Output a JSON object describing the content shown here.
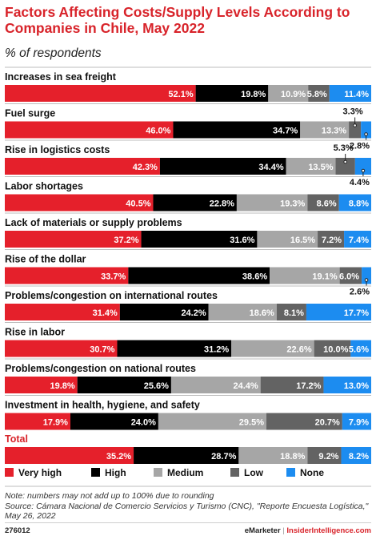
{
  "header": {
    "title": "Factors Affecting Costs/Supply Levels According to Companies in Chile, May 2022",
    "subtitle": "% of respondents"
  },
  "chart_data": {
    "type": "bar",
    "orientation": "horizontal",
    "stacked": true,
    "categories": [
      "Increases in sea freight",
      "Fuel surge",
      "Rise in logistics costs",
      "Labor shortages",
      "Lack of materials or supply problems",
      "Rise of the dollar",
      "Problems/congestion on international routes",
      "Rise in labor",
      "Problems/congestion on national routes",
      "Investment in health, hygiene, and safety",
      "Total"
    ],
    "series": [
      {
        "name": "Very high",
        "color": "#e5202b",
        "values": [
          52.1,
          46.0,
          42.3,
          40.5,
          37.2,
          33.7,
          31.4,
          30.7,
          19.8,
          17.9,
          35.2
        ]
      },
      {
        "name": "High",
        "color": "#000000",
        "values": [
          19.8,
          34.7,
          34.4,
          22.8,
          31.6,
          38.6,
          24.2,
          31.2,
          25.6,
          24.0,
          28.7
        ]
      },
      {
        "name": "Medium",
        "color": "#a6a6a6",
        "values": [
          10.9,
          13.3,
          13.5,
          19.3,
          16.5,
          19.1,
          18.6,
          22.6,
          24.4,
          29.5,
          18.8
        ]
      },
      {
        "name": "Low",
        "color": "#636363",
        "values": [
          5.8,
          3.3,
          5.3,
          8.6,
          7.2,
          6.0,
          8.1,
          10.0,
          17.2,
          20.7,
          9.2
        ]
      },
      {
        "name": "None",
        "color": "#1c8cf0",
        "values": [
          11.4,
          2.8,
          4.4,
          8.8,
          7.4,
          2.6,
          17.7,
          5.6,
          13.0,
          7.9,
          8.2
        ]
      }
    ],
    "labels": [
      [
        "52.1%",
        "19.8%",
        "10.9%",
        "5.8%",
        "11.4%"
      ],
      [
        "46.0%",
        "34.7%",
        "13.3%",
        "3.3%",
        "2.8%"
      ],
      [
        "42.3%",
        "34.4%",
        "13.5%",
        "5.3%",
        "4.4%"
      ],
      [
        "40.5%",
        "22.8%",
        "19.3%",
        "8.6%",
        "8.8%"
      ],
      [
        "37.2%",
        "31.6%",
        "16.5%",
        "7.2%",
        "7.4%"
      ],
      [
        "33.7%",
        "38.6%",
        "19.1%",
        "6.0%",
        "2.6%"
      ],
      [
        "31.4%",
        "24.2%",
        "18.6%",
        "8.1%",
        "17.7%"
      ],
      [
        "30.7%",
        "31.2%",
        "22.6%",
        "10.0%",
        "5.6%"
      ],
      [
        "19.8%",
        "25.6%",
        "24.4%",
        "17.2%",
        "13.0%"
      ],
      [
        "17.9%",
        "24.0%",
        "29.5%",
        "20.7%",
        "7.9%"
      ],
      [
        "35.2%",
        "28.7%",
        "18.8%",
        "9.2%",
        "8.2%"
      ]
    ],
    "legend_position": "bottom",
    "grid": false
  },
  "footer": {
    "note": "Note: numbers may not add up to 100% due to rounding",
    "source": "Source: Cámara Nacional de Comercio Servicios y Turismo (CNC), \"Reporte Encuesta Logística,\" May 26, 2022",
    "chart_id": "276012",
    "brand": "eMarketer",
    "separator": "|",
    "site": "InsiderIntelligence.com"
  }
}
